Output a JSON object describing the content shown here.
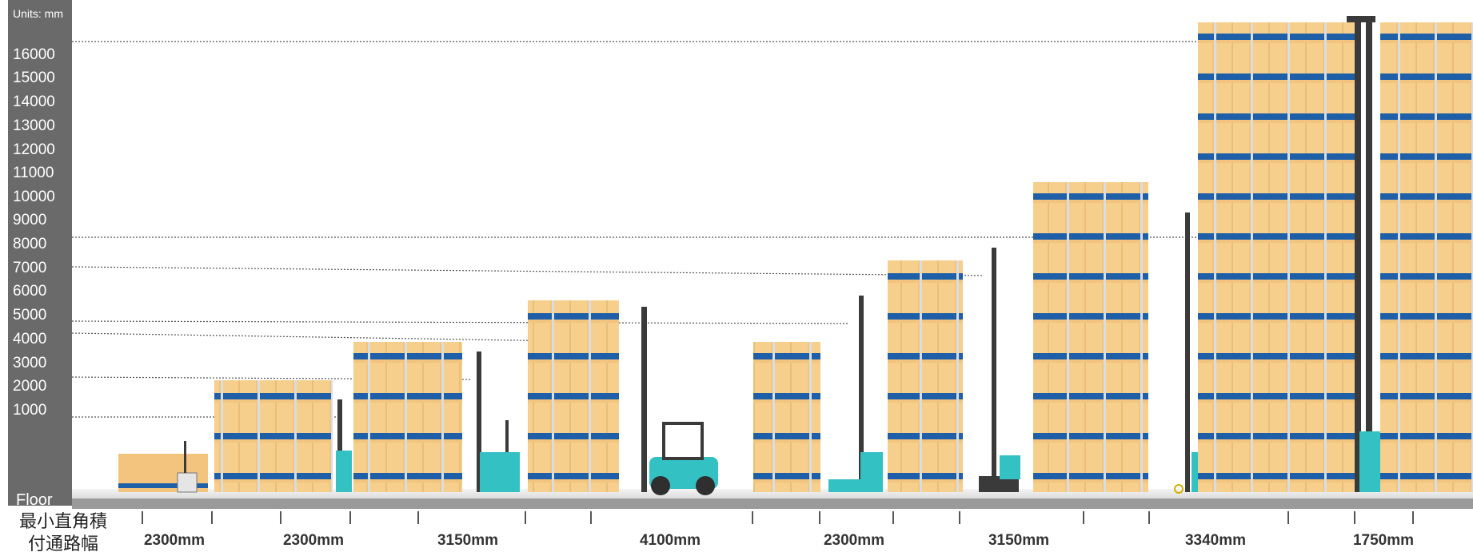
{
  "scale": {
    "units_label": "Units: mm",
    "floor_label": "Floor",
    "ticks": [
      "16000",
      "15000",
      "14000",
      "13000",
      "12000",
      "11000",
      "10000",
      "9000",
      "8000",
      "7000",
      "6000",
      "5000",
      "4000",
      "3000",
      "2000",
      "1000"
    ]
  },
  "aisle_caption": {
    "line1": "最小直角積",
    "line2": "付通路幅"
  },
  "aisles": [
    {
      "label": "2300mm"
    },
    {
      "label": "2300mm"
    },
    {
      "label": "3150mm"
    },
    {
      "label": "4100mm"
    },
    {
      "label": "2300mm"
    },
    {
      "label": "3150mm"
    },
    {
      "label": "3340mm"
    },
    {
      "label": "1750mm"
    }
  ],
  "colors": {
    "scale_panel": "#6a6a6a",
    "box": "#f0c27a",
    "rack_beam": "#1f5fa8",
    "rack_upright": "#d8dde3",
    "truck_body": "#33c1c4",
    "mast": "#3a3a3a"
  }
}
